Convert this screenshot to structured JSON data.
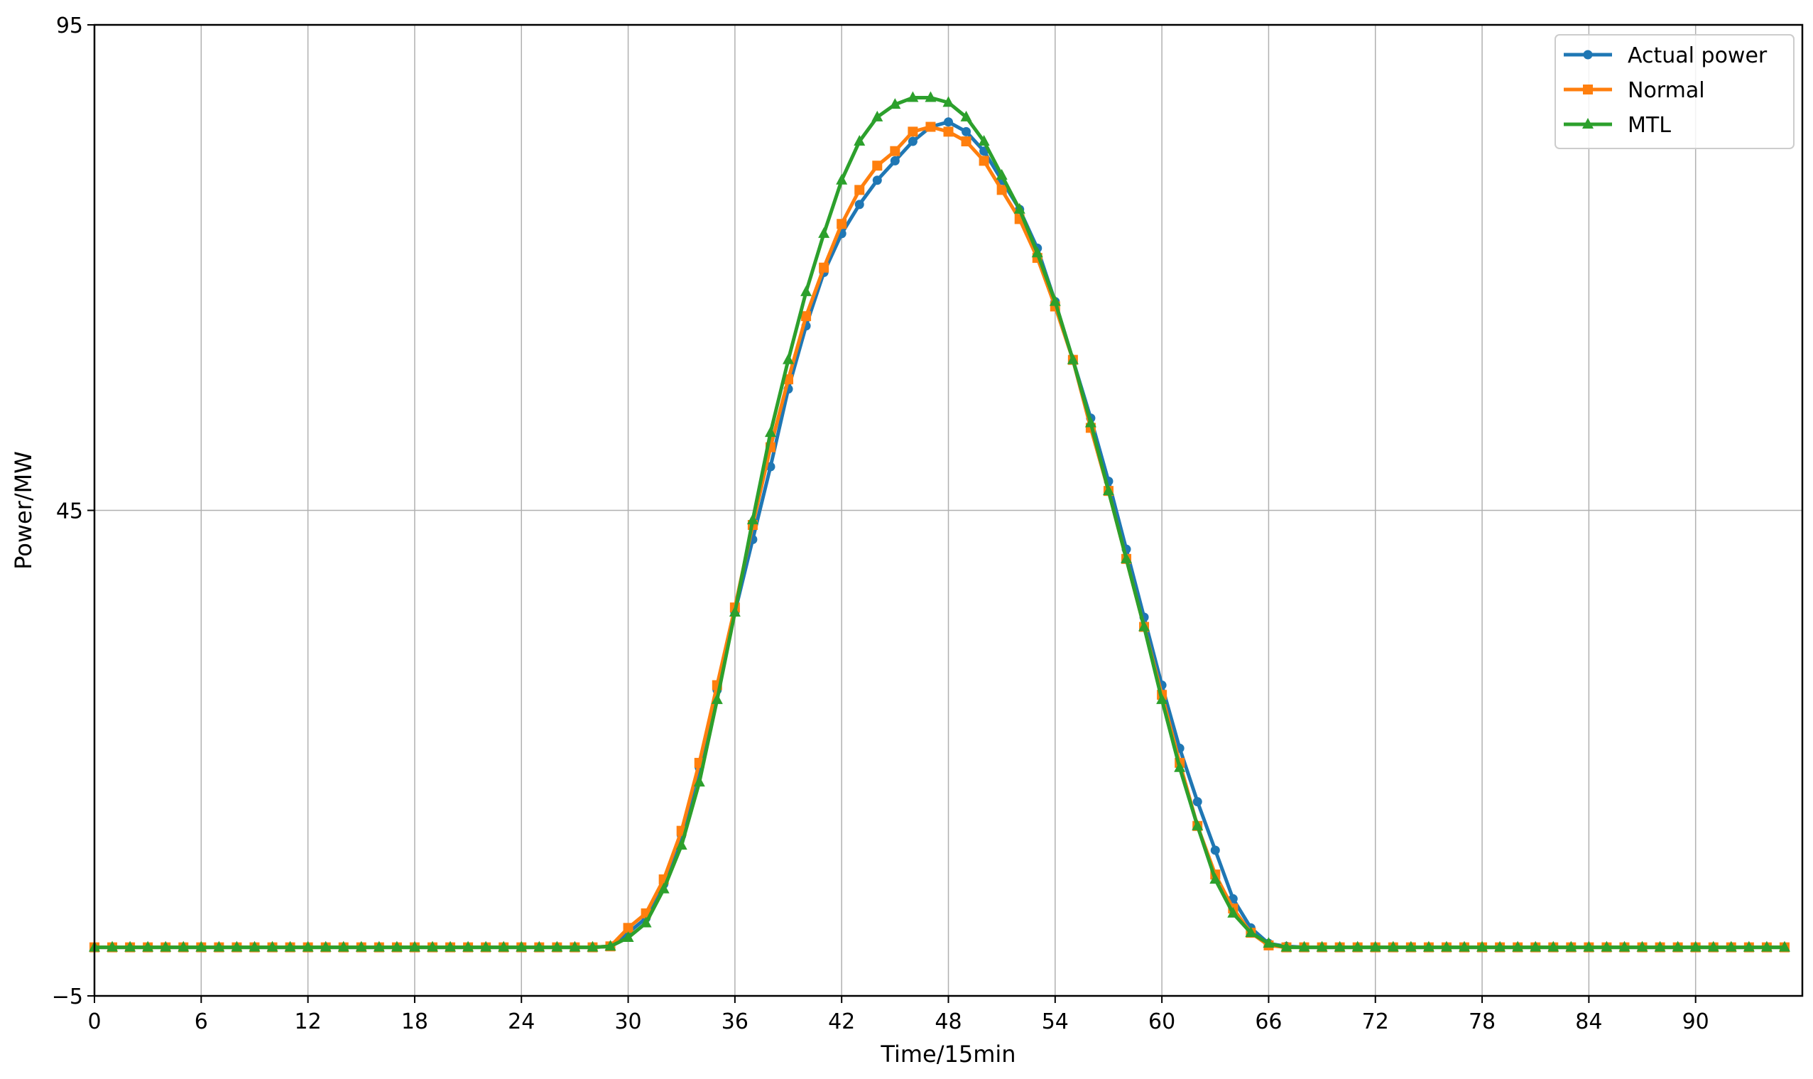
{
  "chart_data": {
    "type": "line",
    "title": "",
    "xlabel": "Time/15min",
    "ylabel": "Power/MW",
    "xlim": [
      0,
      96
    ],
    "ylim": [
      -5,
      95
    ],
    "x_ticks": [
      0,
      6,
      12,
      18,
      24,
      30,
      36,
      42,
      48,
      54,
      60,
      66,
      72,
      78,
      84,
      90
    ],
    "y_ticks": [
      -5,
      45,
      95
    ],
    "x_tick_labels": [
      "0",
      "6",
      "12",
      "18",
      "24",
      "30",
      "36",
      "42",
      "48",
      "54",
      "60",
      "66",
      "72",
      "78",
      "84",
      "90"
    ],
    "y_tick_labels": [
      "−5",
      "45",
      "95"
    ],
    "grid": true,
    "legend_position": "top-right",
    "x": [
      0,
      1,
      2,
      3,
      4,
      5,
      6,
      7,
      8,
      9,
      10,
      11,
      12,
      13,
      14,
      15,
      16,
      17,
      18,
      19,
      20,
      21,
      22,
      23,
      24,
      25,
      26,
      27,
      28,
      29,
      30,
      31,
      32,
      33,
      34,
      35,
      36,
      37,
      38,
      39,
      40,
      41,
      42,
      43,
      44,
      45,
      46,
      47,
      48,
      49,
      50,
      51,
      52,
      53,
      54,
      55,
      56,
      57,
      58,
      59,
      60,
      61,
      62,
      63,
      64,
      65,
      66,
      67,
      68,
      69,
      70,
      71,
      72,
      73,
      74,
      75,
      76,
      77,
      78,
      79,
      80,
      81,
      82,
      83,
      84,
      85,
      86,
      87,
      88,
      89,
      90,
      91,
      92,
      93,
      94,
      95
    ],
    "series": [
      {
        "name": "Actual power",
        "color": "#1f77b4",
        "marker": "circle",
        "values": [
          0,
          0,
          0,
          0,
          0,
          0,
          0,
          0,
          0,
          0,
          0,
          0,
          0,
          0,
          0,
          0,
          0,
          0,
          0,
          0,
          0,
          0,
          0,
          0,
          0,
          0,
          0,
          0,
          0,
          0.1,
          1.5,
          3.0,
          6.5,
          11.5,
          18.5,
          26.5,
          34.5,
          42.0,
          49.5,
          57.5,
          64.0,
          69.5,
          73.5,
          76.5,
          79.0,
          81.0,
          83.0,
          84.5,
          85.0,
          84.0,
          82.0,
          79.0,
          76.0,
          72.0,
          66.5,
          60.5,
          54.5,
          48.0,
          41.0,
          34.0,
          27.0,
          20.5,
          15.0,
          10.0,
          5.0,
          2.0,
          0.4,
          0.1,
          0,
          0,
          0,
          0,
          0,
          0,
          0,
          0,
          0,
          0,
          0,
          0,
          0,
          0,
          0,
          0,
          0,
          0,
          0,
          0,
          0,
          0,
          0,
          0,
          0,
          0,
          0,
          0
        ]
      },
      {
        "name": "Normal",
        "color": "#ff7f0e",
        "marker": "square",
        "values": [
          0,
          0,
          0,
          0,
          0,
          0,
          0,
          0,
          0,
          0,
          0,
          0,
          0,
          0,
          0,
          0,
          0,
          0,
          0,
          0,
          0,
          0,
          0,
          0,
          0,
          0,
          0,
          0,
          0,
          0.1,
          2.0,
          3.5,
          7.0,
          12.0,
          19.0,
          27.0,
          35.0,
          43.5,
          51.5,
          58.5,
          65.0,
          70.0,
          74.5,
          78.0,
          80.5,
          82.0,
          84.0,
          84.5,
          84.0,
          83.0,
          81.0,
          78.0,
          75.0,
          71.0,
          66.0,
          60.5,
          53.5,
          47.0,
          40.0,
          33.0,
          26.0,
          19.0,
          12.5,
          7.5,
          4.0,
          1.5,
          0.2,
          0,
          0,
          0,
          0,
          0,
          0,
          0,
          0,
          0,
          0,
          0,
          0,
          0,
          0,
          0,
          0,
          0,
          0,
          0,
          0,
          0,
          0,
          0,
          0,
          0,
          0,
          0,
          0,
          0
        ]
      },
      {
        "name": "MTL",
        "color": "#2ca02c",
        "marker": "triangle",
        "values": [
          0,
          0,
          0,
          0,
          0,
          0,
          0,
          0,
          0,
          0,
          0,
          0,
          0,
          0,
          0,
          0,
          0,
          0,
          0,
          0,
          0,
          0,
          0,
          0,
          0,
          0,
          0,
          0,
          0,
          0.1,
          1.0,
          2.5,
          6.0,
          10.5,
          17.0,
          25.5,
          34.5,
          44.0,
          53.0,
          60.5,
          67.5,
          73.5,
          79.0,
          83.0,
          85.5,
          86.8,
          87.5,
          87.5,
          87.0,
          85.5,
          83.0,
          79.5,
          76.0,
          71.5,
          66.5,
          60.5,
          54.0,
          47.0,
          40.0,
          33.0,
          25.5,
          18.5,
          12.5,
          7.0,
          3.5,
          1.5,
          0.4,
          0,
          0,
          0,
          0,
          0,
          0,
          0,
          0,
          0,
          0,
          0,
          0,
          0,
          0,
          0,
          0,
          0,
          0,
          0,
          0,
          0,
          0,
          0,
          0,
          0,
          0,
          0,
          0,
          0
        ]
      }
    ]
  }
}
